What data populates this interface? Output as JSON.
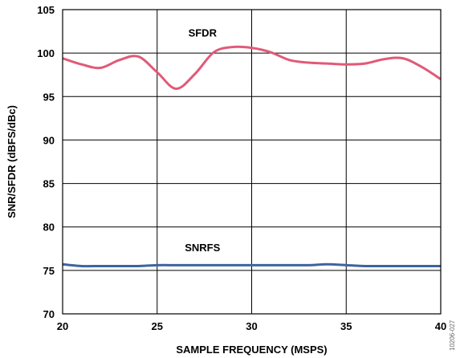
{
  "chart_data": {
    "type": "line",
    "xlabel": "SAMPLE FREQUENCY (MSPS)",
    "ylabel": "SNR/SFDR (dBFS/dBc)",
    "xlim": [
      20,
      40
    ],
    "ylim": [
      70,
      105
    ],
    "xticks": [
      20,
      25,
      30,
      35,
      40
    ],
    "yticks": [
      70,
      75,
      80,
      85,
      90,
      95,
      100,
      105
    ],
    "grid": true,
    "figure_id": "10206-027",
    "series": [
      {
        "name": "SFDR",
        "color": "#e05a78",
        "x": [
          20,
          21,
          22,
          23,
          24,
          25,
          26,
          27,
          28,
          29,
          30,
          31,
          32,
          33,
          34,
          35,
          36,
          37,
          38,
          39,
          40
        ],
        "y": [
          99.4,
          98.7,
          98.3,
          99.2,
          99.6,
          97.8,
          95.9,
          97.6,
          100.1,
          100.7,
          100.6,
          100.1,
          99.2,
          98.9,
          98.8,
          98.7,
          98.8,
          99.3,
          99.4,
          98.4,
          97.0
        ]
      },
      {
        "name": "SNRFS",
        "color": "#3c64a0",
        "x": [
          20,
          21,
          22,
          23,
          24,
          25,
          26,
          27,
          28,
          29,
          30,
          31,
          32,
          33,
          34,
          35,
          36,
          37,
          38,
          39,
          40
        ],
        "y": [
          75.7,
          75.5,
          75.5,
          75.5,
          75.5,
          75.6,
          75.6,
          75.6,
          75.6,
          75.6,
          75.6,
          75.6,
          75.6,
          75.6,
          75.7,
          75.6,
          75.5,
          75.5,
          75.5,
          75.5,
          75.5
        ]
      }
    ]
  }
}
